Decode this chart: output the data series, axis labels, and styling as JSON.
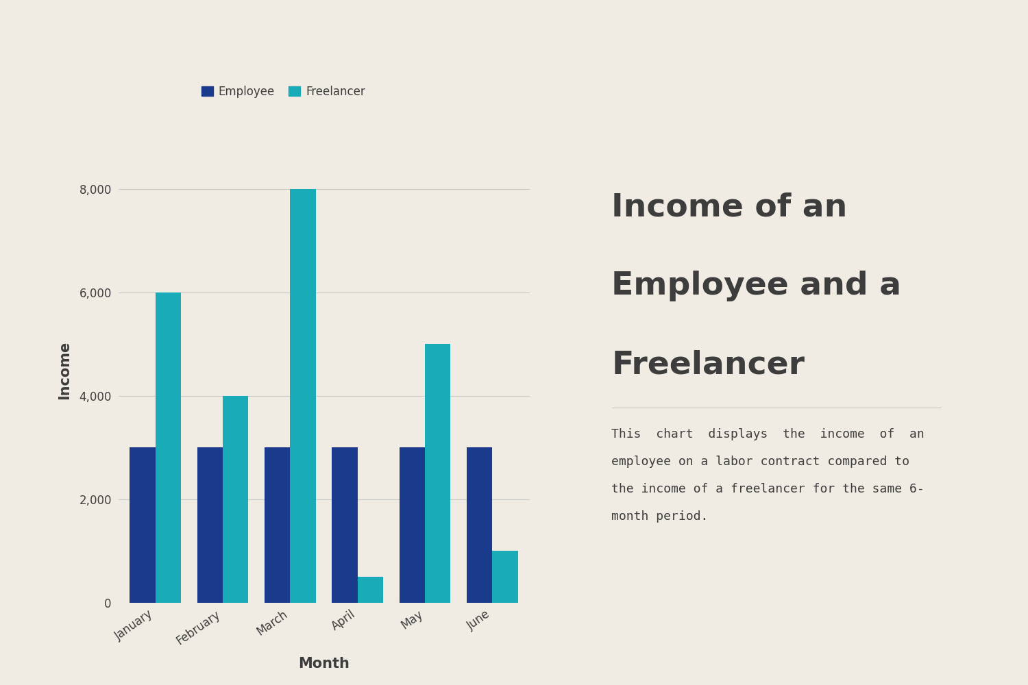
{
  "months": [
    "January",
    "February",
    "March",
    "April",
    "May",
    "June"
  ],
  "employee": [
    3000,
    3000,
    3000,
    3000,
    3000,
    3000
  ],
  "freelancer": [
    6000,
    4000,
    8000,
    500,
    5000,
    1000
  ],
  "employee_color": "#1a3a8c",
  "freelancer_color": "#1aabb8",
  "background_color": "#f0ece3",
  "title_line1": "Income of an",
  "title_line2": "Employee and a",
  "title_line3": "Freelancer",
  "description_line1": "This  chart  displays  the  income  of  an",
  "description_line2": "employee on a labor contract compared to",
  "description_line3": "the income of a freelancer for the same 6-",
  "description_line4": "month period.",
  "xlabel": "Month",
  "ylabel": "Income",
  "ylim": [
    0,
    9000
  ],
  "yticks": [
    0,
    2000,
    4000,
    6000,
    8000
  ],
  "legend_employee": "Employee",
  "legend_freelancer": "Freelancer",
  "title_fontsize": 34,
  "desc_fontsize": 13,
  "axis_label_fontsize": 13,
  "tick_fontsize": 12,
  "legend_fontsize": 12,
  "text_color": "#3d3d3d",
  "grid_color": "#c8c8c8",
  "bar_width": 0.38
}
